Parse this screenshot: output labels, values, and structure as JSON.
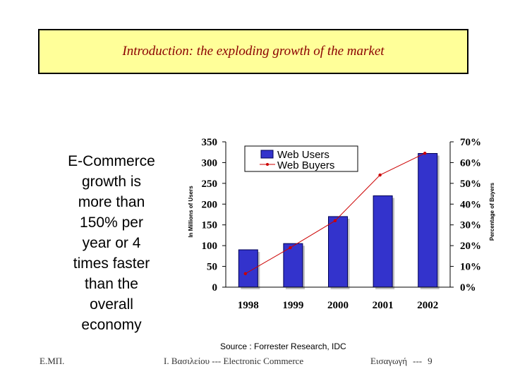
{
  "slide": {
    "title": "Introduction: the exploding growth of the market",
    "side_text": "E-Commerce\ngrowth is\nmore than\n150% per\nyear or 4\ntimes faster\nthan the\noverall\neconomy",
    "source": "Source : Forrester Research, IDC",
    "footer_left": "Ε.ΜΠ.",
    "footer_mid": "Ι. Βασιλείου --- Electronic Commerce",
    "footer_right_label": "Εισαγωγή",
    "footer_right_sep": "---",
    "footer_page": "9"
  },
  "chart_data": {
    "type": "bar",
    "categories": [
      "1998",
      "1999",
      "2000",
      "2001",
      "2002"
    ],
    "series": [
      {
        "name": "Web Users",
        "kind": "bar",
        "axis": "left",
        "values": [
          90,
          105,
          170,
          220,
          322
        ],
        "color": "#3333cc"
      },
      {
        "name": "Web Buyers",
        "kind": "line",
        "axis": "right",
        "values": [
          0.065,
          0.19,
          0.32,
          0.54,
          0.645
        ],
        "color": "#cc0000"
      }
    ],
    "ylabel": "In Millions of Users",
    "y2label": "Percentage of Buyers",
    "ylim": [
      0,
      350
    ],
    "y2lim": [
      0,
      0.7
    ],
    "yticks": [
      "0",
      "50",
      "100",
      "150",
      "200",
      "250",
      "300",
      "350"
    ],
    "y2ticks": [
      "0%",
      "10%",
      "20%",
      "30%",
      "40%",
      "50%",
      "60%",
      "70%"
    ],
    "legend": "top-left"
  }
}
